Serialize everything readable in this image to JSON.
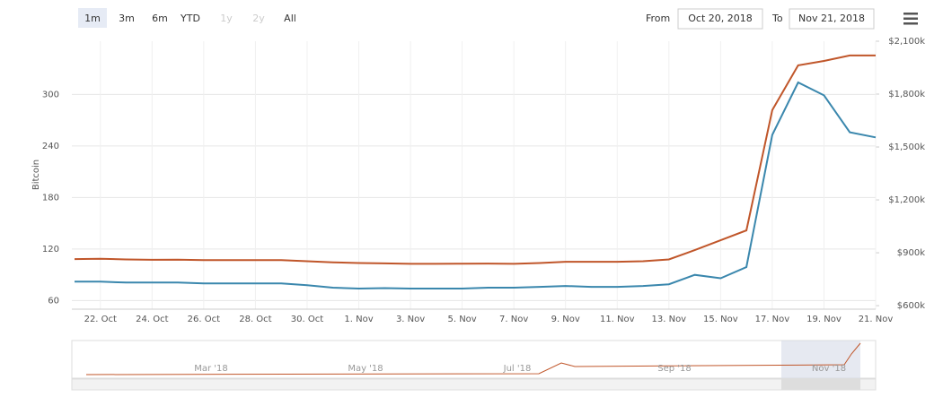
{
  "toolbar": {
    "buttons": [
      "1m",
      "3m",
      "6m",
      "YTD",
      "1y",
      "2y",
      "All"
    ],
    "from_label": "From",
    "from": "Oct 20, 2018",
    "to_label": "To",
    "to": "Nov 21, 2018"
  },
  "chart_data": {
    "type": "line",
    "ylabel": "Bitcoin",
    "categories": [
      null,
      "22. Oct",
      null,
      "24. Oct",
      null,
      "26. Oct",
      null,
      "28. Oct",
      null,
      "30. Oct",
      null,
      "1. Nov",
      null,
      "3. Nov",
      null,
      "5. Nov",
      null,
      "7. Nov",
      null,
      "9. Nov",
      null,
      "11. Nov",
      null,
      "13. Nov",
      null,
      "15. Nov",
      null,
      "17. Nov",
      null,
      "19. Nov",
      null,
      "21. Nov"
    ],
    "series": [
      {
        "color": "#3a87ad",
        "axis": "y",
        "values": [
          82,
          82,
          81,
          81,
          81,
          80,
          80,
          80,
          80,
          78,
          75,
          74,
          74.5,
          74,
          74,
          74,
          75,
          75,
          76,
          77,
          76,
          76,
          77,
          79,
          90,
          86,
          99,
          253,
          314,
          299,
          256,
          250
        ]
      },
      {
        "color": "#c0562a",
        "axis": "y2",
        "values": [
          864,
          866,
          862,
          860,
          861,
          858,
          858,
          858,
          858,
          852,
          846,
          842,
          840,
          837,
          837,
          838,
          839,
          837,
          842,
          849,
          849,
          849,
          852,
          862,
          915,
          971,
          1027,
          1709,
          1963,
          1988,
          2019,
          2019
        ]
      }
    ],
    "ylim": [
      50,
      362
    ],
    "yticks": [
      60,
      120,
      180,
      240,
      300
    ],
    "y2lim": [
      580,
      2100
    ],
    "y2ticks": [
      {
        "value": 600,
        "label": "$600k"
      },
      {
        "value": 900,
        "label": "$900k"
      },
      {
        "value": 1200,
        "label": "$1,200k"
      },
      {
        "value": 1500,
        "label": "$1,500k"
      },
      {
        "value": 1800,
        "label": "$1,800k"
      },
      {
        "value": 2100,
        "label": "$2,100k"
      }
    ],
    "grid": true
  },
  "navigator": {
    "labels": [
      "Mar '18",
      "May '18",
      "Jul '18",
      "Sep '18",
      "Nov '18"
    ]
  }
}
